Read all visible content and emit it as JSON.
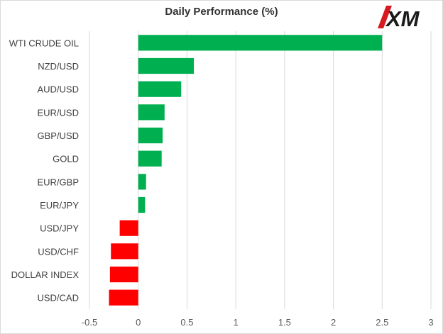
{
  "chart_data": {
    "type": "bar",
    "orientation": "horizontal",
    "title": "Daily Performance (%)",
    "categories": [
      "WTI CRUDE OIL",
      "NZD/USD",
      "AUD/USD",
      "EUR/USD",
      "GBP/USD",
      "GOLD",
      "EUR/GBP",
      "EUR/JPY",
      "USD/JPY",
      "USD/CHF",
      "DOLLAR INDEX",
      "USD/CAD"
    ],
    "values": [
      2.5,
      0.57,
      0.44,
      0.27,
      0.25,
      0.24,
      0.08,
      0.07,
      -0.19,
      -0.28,
      -0.29,
      -0.3
    ],
    "xlim": [
      -0.5,
      3
    ],
    "xticks": [
      -0.5,
      0,
      0.5,
      1,
      1.5,
      2,
      2.5,
      3
    ],
    "xtick_labels": [
      "-0.5",
      "0",
      "0.5",
      "1",
      "1.5",
      "2",
      "2.5",
      "3"
    ],
    "grid": "vertical",
    "legend": "none",
    "colors": {
      "positive": "#00b050",
      "negative": "#ff0000"
    }
  },
  "brand": {
    "logo_text": "XM",
    "color": "#d71920"
  }
}
